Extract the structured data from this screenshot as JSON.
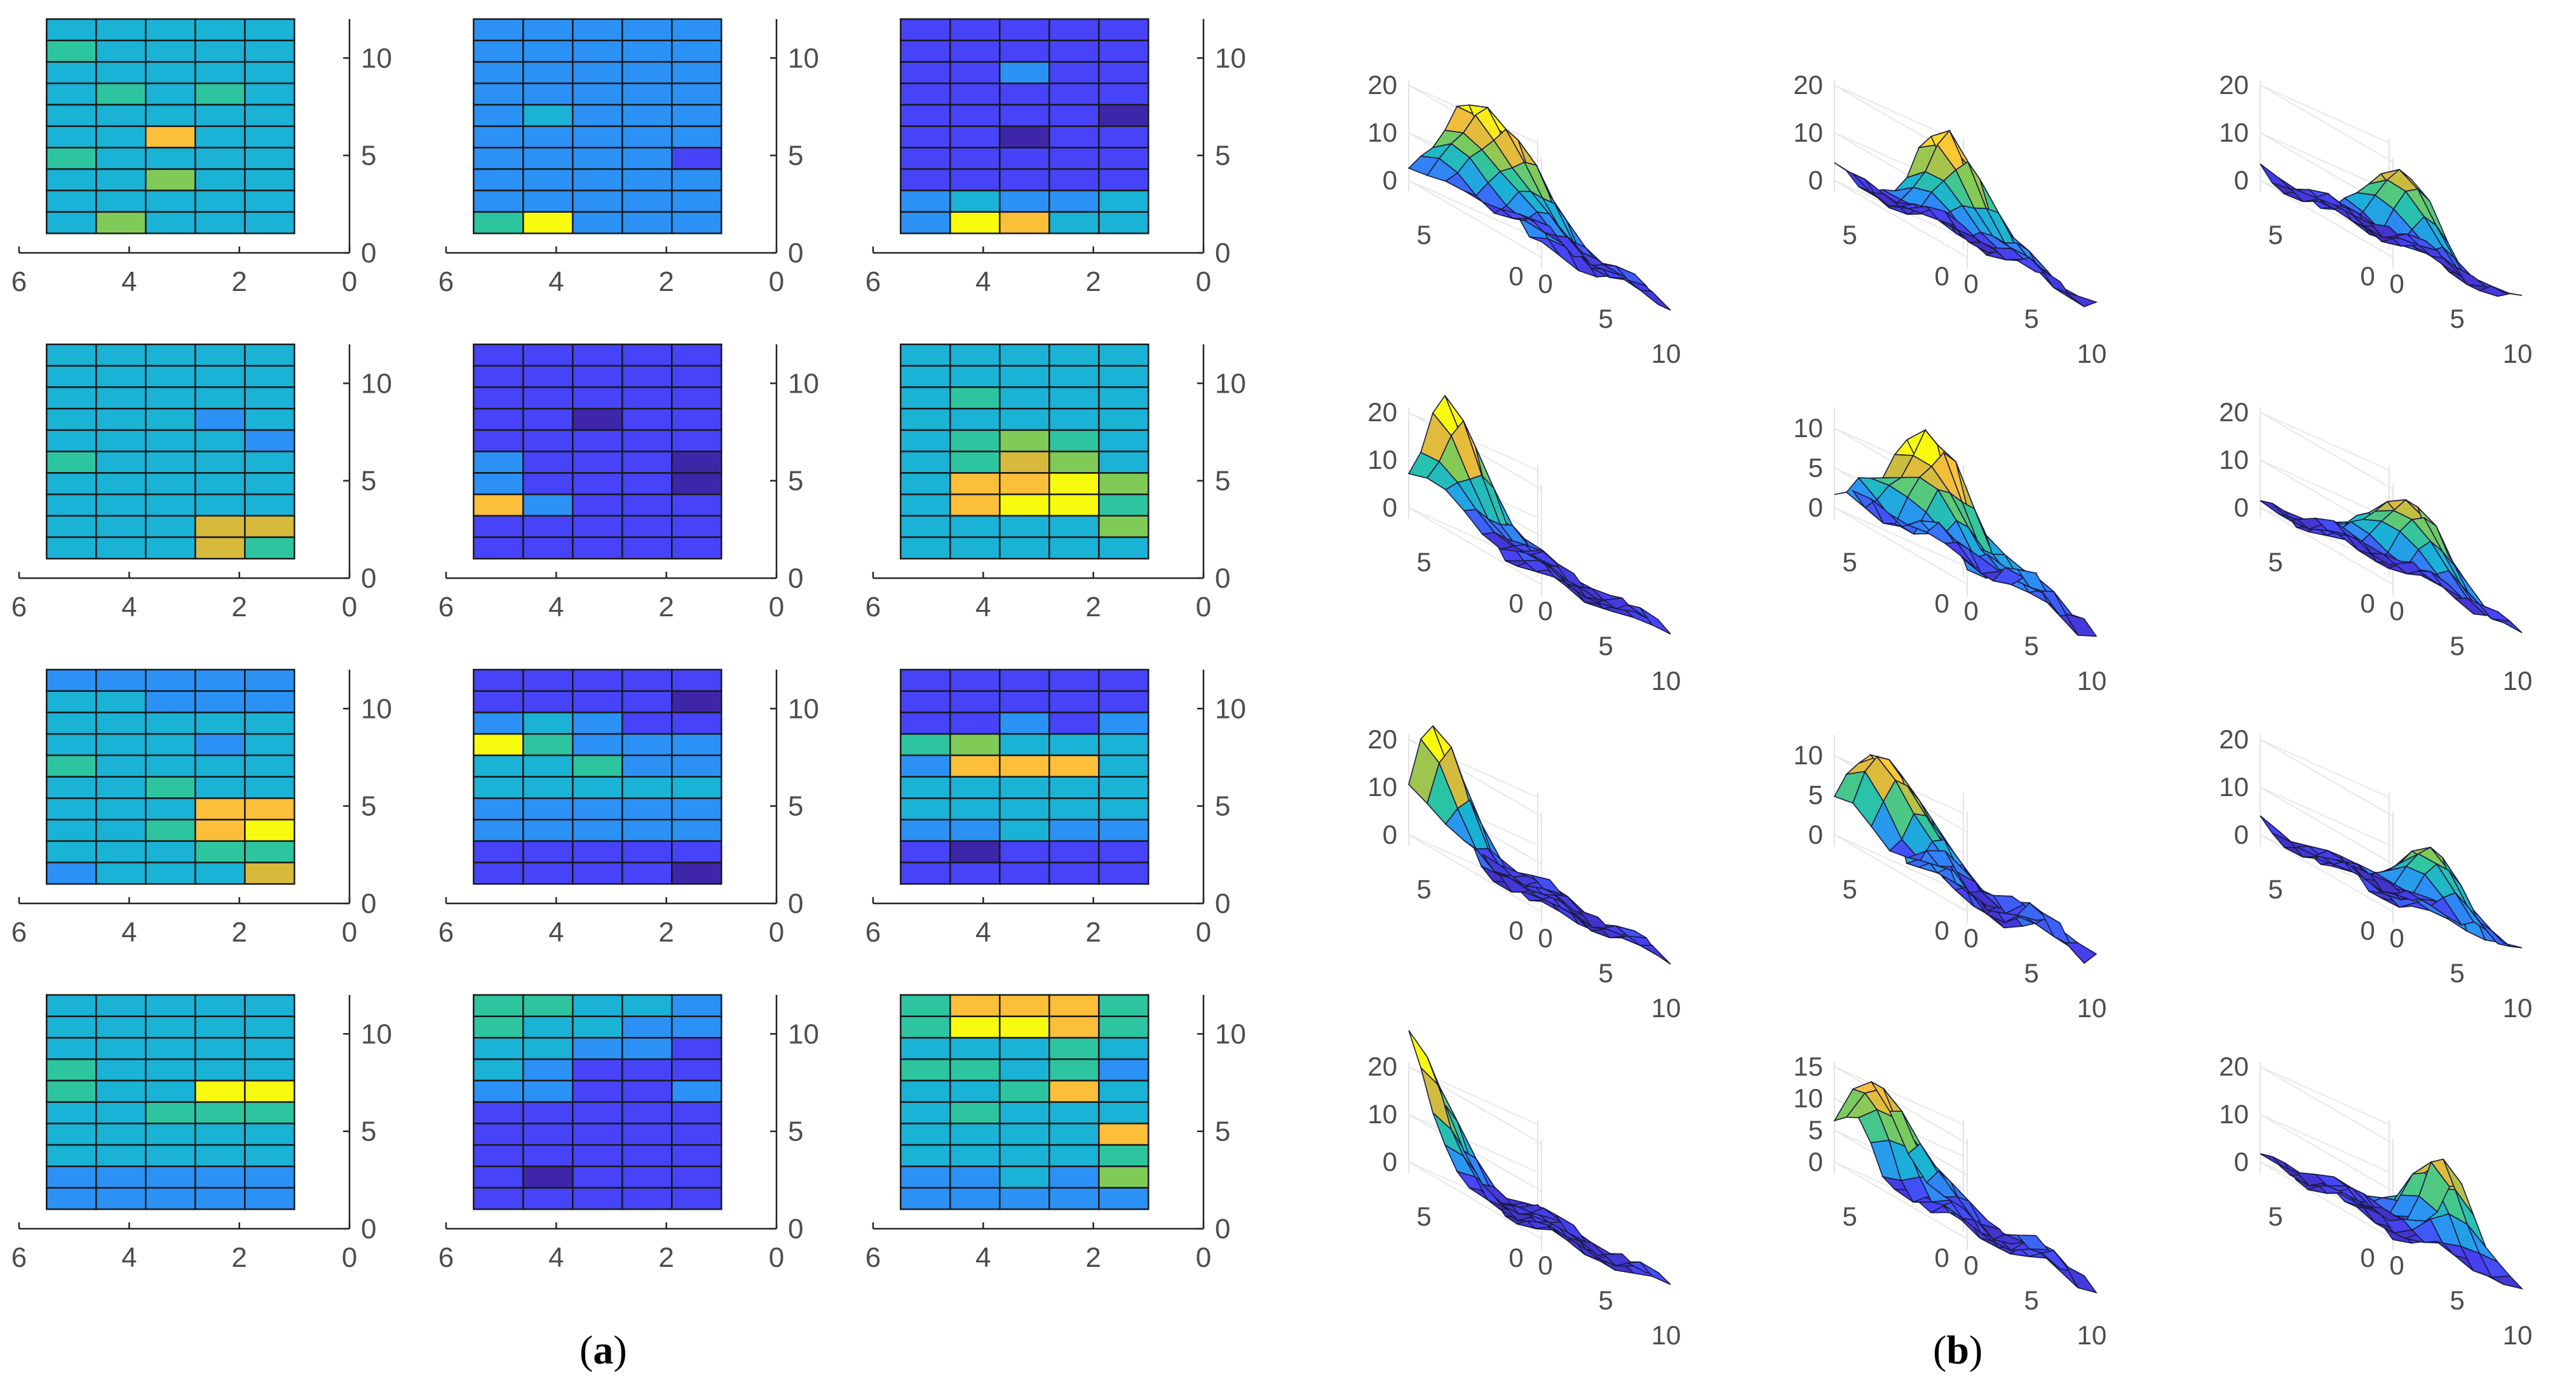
{
  "panel_labels": {
    "a": {
      "open": "(",
      "letter": "a",
      "close": ")"
    },
    "b": {
      "open": "(",
      "letter": "b",
      "close": ")"
    }
  },
  "colormap": [
    "#3e26a8",
    "#4743f8",
    "#2c91f5",
    "#1ab2d5",
    "#2dc5a0",
    "#80cb58",
    "#d7ba3c",
    "#fcbf3a",
    "#f8fa0d"
  ],
  "chart_data": [
    {
      "type": "heatmap-grid",
      "panel": "a",
      "rows": 4,
      "cols": 3,
      "xticks": [
        "6",
        "4",
        "2",
        "0"
      ],
      "yticks": [
        "0",
        "5",
        "10"
      ],
      "xlim": [
        6,
        0
      ],
      "ylim": [
        0,
        12
      ],
      "cell_cols": 5,
      "cell_rows": 10,
      "z_range": [
        0,
        8
      ],
      "heatmaps": [
        [
          [
            3,
            3,
            3,
            3,
            3
          ],
          [
            4,
            3,
            3,
            3,
            3
          ],
          [
            3,
            3,
            3,
            3,
            3
          ],
          [
            3,
            4,
            3,
            4,
            3
          ],
          [
            3,
            3,
            3,
            3,
            3
          ],
          [
            3,
            3,
            7,
            3,
            3
          ],
          [
            4,
            3,
            3,
            3,
            3
          ],
          [
            3,
            3,
            5,
            3,
            3
          ],
          [
            3,
            3,
            3,
            3,
            3
          ],
          [
            3,
            5,
            3,
            3,
            3
          ]
        ],
        [
          [
            2,
            2,
            2,
            2,
            2
          ],
          [
            2,
            2,
            2,
            2,
            2
          ],
          [
            2,
            2,
            2,
            2,
            2
          ],
          [
            2,
            2,
            2,
            2,
            2
          ],
          [
            2,
            3,
            2,
            2,
            2
          ],
          [
            2,
            2,
            2,
            2,
            2
          ],
          [
            2,
            2,
            2,
            2,
            1
          ],
          [
            2,
            2,
            2,
            2,
            2
          ],
          [
            2,
            2,
            2,
            2,
            2
          ],
          [
            4,
            8,
            2,
            2,
            2
          ]
        ],
        [
          [
            1,
            1,
            1,
            1,
            1
          ],
          [
            1,
            1,
            1,
            1,
            1
          ],
          [
            1,
            1,
            2,
            1,
            1
          ],
          [
            1,
            1,
            1,
            1,
            1
          ],
          [
            1,
            1,
            1,
            1,
            0
          ],
          [
            1,
            1,
            0,
            1,
            1
          ],
          [
            1,
            1,
            1,
            1,
            1
          ],
          [
            1,
            1,
            1,
            1,
            1
          ],
          [
            2,
            3,
            2,
            2,
            3
          ],
          [
            2,
            8,
            7,
            3,
            3
          ]
        ],
        [
          [
            3,
            3,
            3,
            3,
            3
          ],
          [
            3,
            3,
            3,
            3,
            3
          ],
          [
            3,
            3,
            3,
            3,
            3
          ],
          [
            3,
            3,
            3,
            2,
            3
          ],
          [
            3,
            3,
            3,
            3,
            2
          ],
          [
            4,
            3,
            3,
            3,
            3
          ],
          [
            3,
            3,
            3,
            3,
            3
          ],
          [
            3,
            3,
            3,
            3,
            3
          ],
          [
            3,
            3,
            3,
            6,
            6
          ],
          [
            3,
            3,
            3,
            6,
            4
          ]
        ],
        [
          [
            1,
            1,
            1,
            1,
            1
          ],
          [
            1,
            1,
            1,
            1,
            1
          ],
          [
            1,
            1,
            1,
            1,
            1
          ],
          [
            1,
            1,
            0,
            1,
            1
          ],
          [
            1,
            1,
            1,
            1,
            1
          ],
          [
            2,
            1,
            1,
            1,
            0
          ],
          [
            2,
            1,
            1,
            1,
            0
          ],
          [
            7,
            2,
            1,
            1,
            1
          ],
          [
            1,
            1,
            1,
            1,
            1
          ],
          [
            1,
            1,
            1,
            1,
            1
          ]
        ],
        [
          [
            3,
            3,
            3,
            3,
            3
          ],
          [
            3,
            3,
            3,
            3,
            3
          ],
          [
            3,
            4,
            3,
            3,
            3
          ],
          [
            3,
            3,
            3,
            3,
            3
          ],
          [
            3,
            4,
            5,
            4,
            3
          ],
          [
            3,
            4,
            6,
            5,
            3
          ],
          [
            3,
            7,
            7,
            8,
            5
          ],
          [
            3,
            7,
            8,
            8,
            4
          ],
          [
            3,
            3,
            3,
            3,
            5
          ],
          [
            3,
            3,
            3,
            3,
            3
          ]
        ],
        [
          [
            2,
            2,
            2,
            2,
            2
          ],
          [
            3,
            3,
            2,
            2,
            2
          ],
          [
            3,
            3,
            3,
            3,
            3
          ],
          [
            3,
            3,
            3,
            2,
            3
          ],
          [
            4,
            3,
            3,
            3,
            3
          ],
          [
            3,
            3,
            4,
            3,
            3
          ],
          [
            3,
            3,
            3,
            7,
            7
          ],
          [
            3,
            3,
            4,
            7,
            8
          ],
          [
            3,
            3,
            3,
            4,
            4
          ],
          [
            2,
            3,
            3,
            3,
            6
          ]
        ],
        [
          [
            1,
            1,
            1,
            1,
            1
          ],
          [
            1,
            1,
            1,
            1,
            0
          ],
          [
            2,
            3,
            2,
            1,
            1
          ],
          [
            8,
            4,
            2,
            2,
            2
          ],
          [
            3,
            3,
            4,
            2,
            2
          ],
          [
            3,
            3,
            3,
            3,
            3
          ],
          [
            2,
            2,
            2,
            2,
            2
          ],
          [
            2,
            2,
            2,
            2,
            2
          ],
          [
            1,
            1,
            1,
            1,
            1
          ],
          [
            1,
            1,
            1,
            1,
            0
          ]
        ],
        [
          [
            1,
            1,
            1,
            1,
            1
          ],
          [
            1,
            1,
            1,
            1,
            1
          ],
          [
            1,
            1,
            2,
            1,
            2
          ],
          [
            4,
            5,
            3,
            3,
            3
          ],
          [
            2,
            7,
            7,
            7,
            3
          ],
          [
            3,
            3,
            3,
            3,
            3
          ],
          [
            3,
            3,
            3,
            3,
            3
          ],
          [
            2,
            2,
            3,
            2,
            2
          ],
          [
            1,
            0,
            1,
            1,
            1
          ],
          [
            1,
            1,
            1,
            1,
            1
          ]
        ],
        [
          [
            3,
            3,
            3,
            3,
            3
          ],
          [
            3,
            3,
            3,
            3,
            3
          ],
          [
            3,
            3,
            3,
            3,
            3
          ],
          [
            4,
            3,
            3,
            3,
            3
          ],
          [
            4,
            3,
            3,
            8,
            8
          ],
          [
            3,
            3,
            4,
            4,
            4
          ],
          [
            3,
            3,
            3,
            3,
            3
          ],
          [
            3,
            3,
            3,
            3,
            3
          ],
          [
            2,
            2,
            2,
            2,
            2
          ],
          [
            2,
            2,
            2,
            2,
            2
          ]
        ],
        [
          [
            4,
            4,
            3,
            3,
            2
          ],
          [
            4,
            3,
            3,
            2,
            2
          ],
          [
            3,
            3,
            2,
            2,
            1
          ],
          [
            3,
            2,
            1,
            1,
            1
          ],
          [
            2,
            2,
            1,
            1,
            2
          ],
          [
            1,
            1,
            1,
            1,
            1
          ],
          [
            1,
            1,
            1,
            1,
            1
          ],
          [
            1,
            1,
            1,
            1,
            1
          ],
          [
            1,
            0,
            1,
            1,
            1
          ],
          [
            1,
            1,
            1,
            1,
            1
          ]
        ],
        [
          [
            4,
            7,
            7,
            7,
            4
          ],
          [
            4,
            8,
            8,
            7,
            4
          ],
          [
            3,
            3,
            3,
            4,
            3
          ],
          [
            4,
            4,
            3,
            4,
            2
          ],
          [
            3,
            3,
            4,
            7,
            3
          ],
          [
            3,
            4,
            3,
            3,
            3
          ],
          [
            3,
            3,
            3,
            3,
            7
          ],
          [
            3,
            3,
            3,
            3,
            4
          ],
          [
            2,
            2,
            3,
            2,
            5
          ],
          [
            2,
            2,
            2,
            2,
            2
          ]
        ]
      ]
    },
    {
      "type": "surface-grid",
      "panel": "b",
      "rows": 4,
      "cols": 3,
      "x_ticks": [
        "0",
        "5",
        "10"
      ],
      "y_ticks": [
        "0",
        "5"
      ],
      "zticks": [
        [
          "0",
          "10",
          "20"
        ],
        [
          "0",
          "10",
          "20"
        ],
        [
          "0",
          "10",
          "20"
        ],
        [
          "0",
          "10",
          "20"
        ],
        [
          "0",
          "5",
          "10"
        ],
        [
          "0",
          "10",
          "20"
        ],
        [
          "0",
          "10",
          "20"
        ],
        [
          "0",
          "5",
          "10"
        ],
        [
          "0",
          "10",
          "20"
        ],
        [
          "0",
          "10",
          "20"
        ],
        [
          "0",
          "5",
          "10",
          "15"
        ],
        [
          "0",
          "10",
          "20"
        ]
      ],
      "zmax": [
        20,
        20,
        20,
        20,
        12,
        20,
        20,
        12,
        20,
        20,
        15,
        20
      ],
      "peaks": [
        {
          "x": 5,
          "y": 6,
          "h": 22,
          "w": 2.2
        },
        {
          "x": 8,
          "y": 6,
          "h": 20,
          "w": 1.8
        },
        {
          "x": 10,
          "y": 6,
          "h": 18,
          "w": 1.6
        },
        {
          "x": 3,
          "y": 7,
          "h": 24,
          "w": 1.8
        },
        {
          "x": 6,
          "y": 6,
          "h": 13,
          "w": 2.0
        },
        {
          "x": 9,
          "y": 5,
          "h": 17,
          "w": 1.8
        },
        {
          "x": 2,
          "y": 7,
          "h": 24,
          "w": 1.5
        },
        {
          "x": 3,
          "y": 6,
          "h": 13,
          "w": 1.6
        },
        {
          "x": 8,
          "y": 3,
          "h": 14,
          "w": 1.6
        },
        {
          "x": 0,
          "y": 7,
          "h": 26,
          "w": 1.6
        },
        {
          "x": 1,
          "y": 5,
          "h": 14,
          "w": 1.6
        },
        {
          "x": 6,
          "y": 1,
          "h": 17,
          "w": 1.5
        }
      ]
    }
  ]
}
